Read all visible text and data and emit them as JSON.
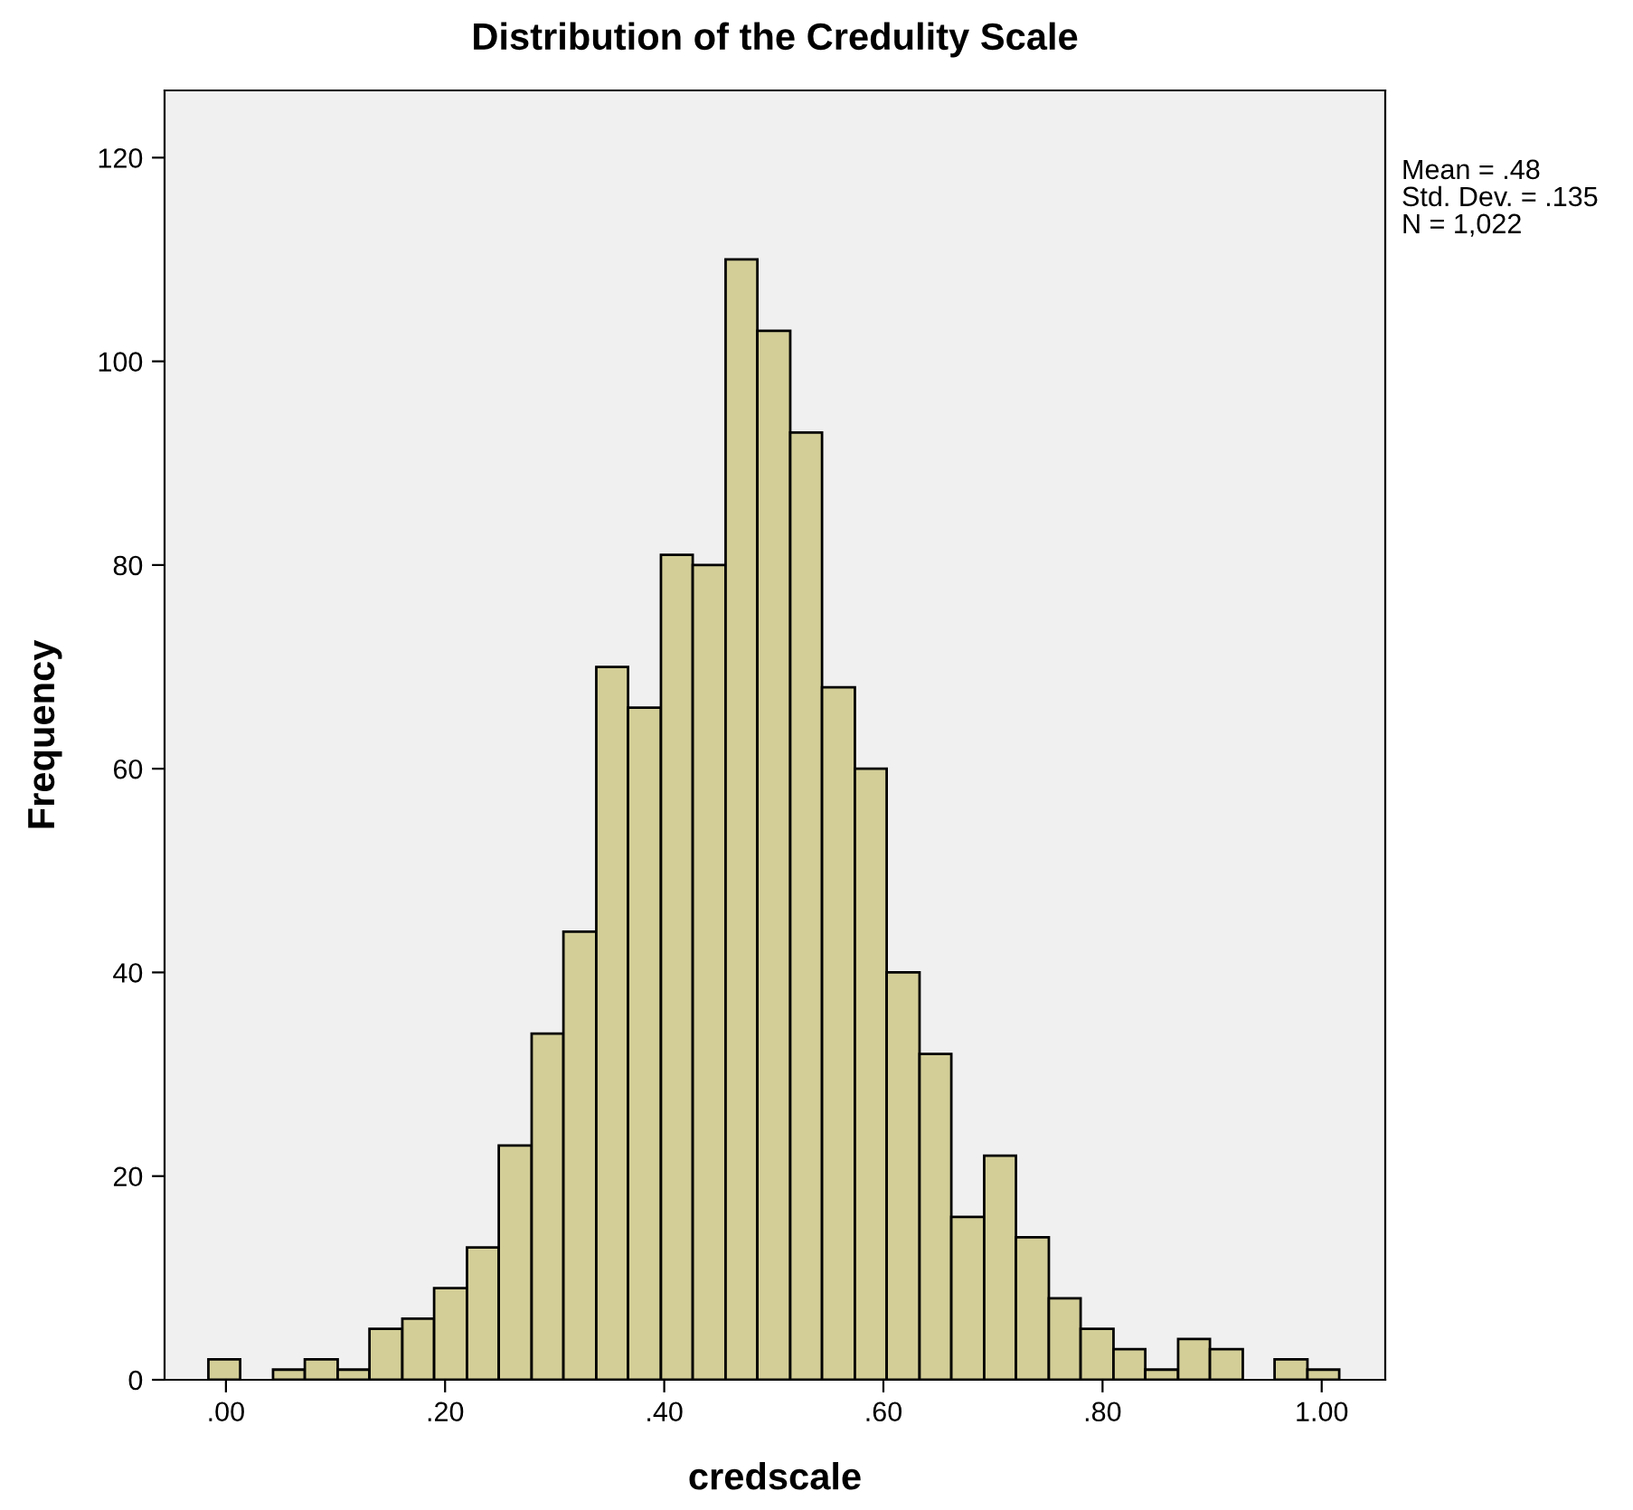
{
  "chart_data": {
    "type": "histogram",
    "title": "Distribution of the Credulity Scale",
    "xlabel": "credscale",
    "ylabel": "Frequency",
    "bins": [
      -0.016,
      0.013,
      0.043,
      0.072,
      0.102,
      0.131,
      0.161,
      0.19,
      0.22,
      0.249,
      0.279,
      0.308,
      0.338,
      0.367,
      0.397,
      0.426,
      0.456,
      0.485,
      0.515,
      0.544,
      0.574,
      0.603,
      0.633,
      0.662,
      0.692,
      0.721,
      0.751,
      0.78,
      0.81,
      0.839,
      0.869,
      0.898,
      0.928,
      0.957,
      0.987,
      1.016
    ],
    "values": [
      2,
      0,
      1,
      2,
      1,
      5,
      6,
      9,
      13,
      23,
      34,
      44,
      70,
      66,
      81,
      80,
      110,
      103,
      93,
      68,
      60,
      40,
      32,
      16,
      22,
      14,
      8,
      5,
      3,
      1,
      4,
      3,
      0,
      2,
      1
    ],
    "color": "#d3ce97",
    "xlim": [
      -0.056,
      1.058
    ],
    "xticks": [
      {
        "value": 0,
        "label": ".00"
      },
      {
        "value": 0.2,
        "label": ".20"
      },
      {
        "value": 0.4,
        "label": ".40"
      },
      {
        "value": 0.6,
        "label": ".60"
      },
      {
        "value": 0.8,
        "label": ".80"
      },
      {
        "value": 1,
        "label": "1.00"
      }
    ],
    "ylim": [
      0,
      126.6
    ],
    "yticks": [
      0,
      20,
      40,
      60,
      80,
      100,
      120
    ],
    "grid": false,
    "legend": false,
    "annotations": [
      "Mean = .48",
      "Std. Dev. = .135",
      "N = 1,022"
    ]
  }
}
